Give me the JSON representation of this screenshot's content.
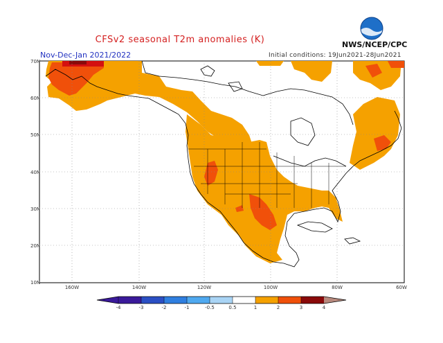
{
  "title": "CFSv2 seasonal T2m anomalies (K)",
  "period": "Nov-Dec-Jan 2021/2022",
  "initial_conditions": "Initial conditions: 19Jun2021-28Jun2021",
  "agency": "NWS/NCEP/CPC",
  "logo_text": "NOAA",
  "lat_labels": [
    "70N",
    "60N",
    "50N",
    "40N",
    "30N",
    "20N",
    "10N"
  ],
  "lon_labels": [
    "160W",
    "140W",
    "120W",
    "100W",
    "80W",
    "60W"
  ],
  "colorbar_labels": [
    "-4",
    "-3",
    "-2",
    "-1",
    "-0.5",
    "0.5",
    "1",
    "2",
    "3",
    "4"
  ],
  "colors": {
    "c_m4": "#3a1a9a",
    "c_m3": "#2b4fc4",
    "c_m2": "#2f7fe0",
    "c_m1": "#4fa9f0",
    "c_m05": "#a9d4f5",
    "c_0": "#ffffff",
    "c_05": "#ffffff",
    "c_1": "#f5a100",
    "c_2": "#f0500a",
    "c_3": "#d41010",
    "c_4": "#8a0a0a",
    "c_5": "#b88a7e",
    "land_line": "#000000",
    "grid": "#888888"
  }
}
